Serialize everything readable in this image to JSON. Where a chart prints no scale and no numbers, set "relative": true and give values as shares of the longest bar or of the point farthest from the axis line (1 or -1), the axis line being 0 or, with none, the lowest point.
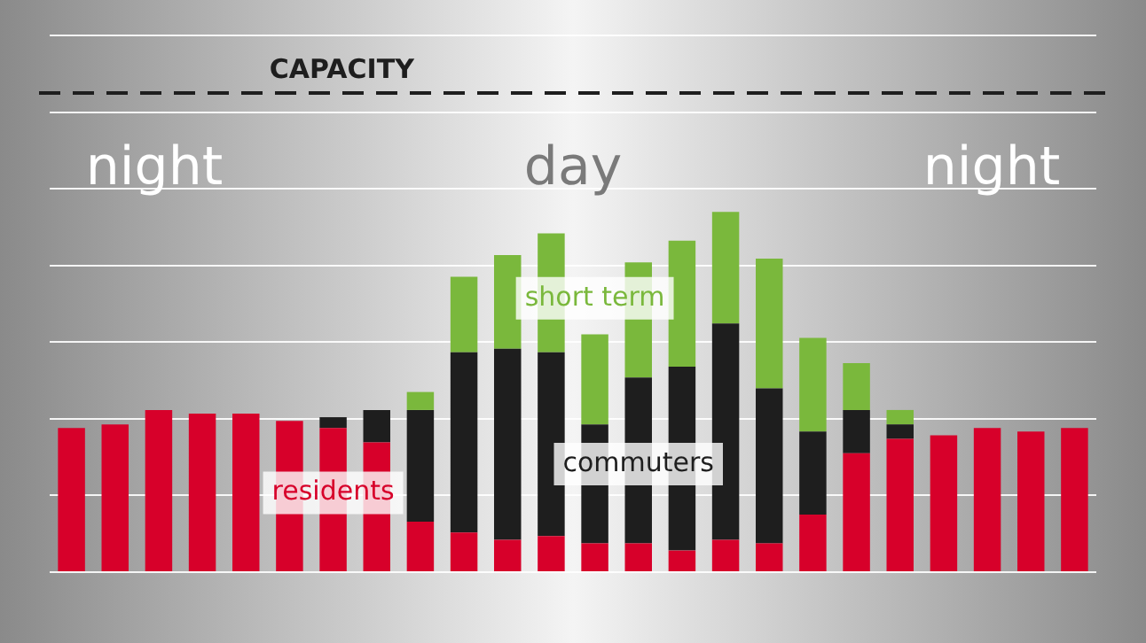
{
  "chart_data": {
    "type": "bar",
    "stacked": true,
    "relative": true,
    "grid": "y",
    "legend": false,
    "categories": [
      null,
      null,
      null,
      null,
      null,
      null,
      null,
      null,
      null,
      null,
      null,
      null,
      null,
      null,
      null,
      null,
      null,
      null,
      null,
      null,
      null,
      null,
      null,
      null
    ],
    "series": [
      {
        "name": "residents",
        "color": "#d7002a",
        "values": [
          0.4,
          0.41,
          0.45,
          0.44,
          0.44,
          0.42,
          0.4,
          0.36,
          0.14,
          0.11,
          0.09,
          0.1,
          0.08,
          0.08,
          0.06,
          0.09,
          0.08,
          0.16,
          0.33,
          0.37,
          0.38,
          0.4,
          0.39,
          0.4
        ]
      },
      {
        "name": "commuters",
        "color": "#1e1e1e",
        "values": [
          null,
          null,
          null,
          null,
          null,
          null,
          0.03,
          0.09,
          0.31,
          0.5,
          0.53,
          0.51,
          0.33,
          0.46,
          0.51,
          0.6,
          0.43,
          0.23,
          0.12,
          0.04,
          null,
          null,
          null,
          null
        ]
      },
      {
        "name": "short term",
        "color": "#7ab83c",
        "values": [
          null,
          null,
          null,
          null,
          null,
          null,
          null,
          null,
          0.05,
          0.21,
          0.26,
          0.33,
          0.25,
          0.32,
          0.35,
          0.31,
          0.36,
          0.26,
          0.13,
          0.04,
          null,
          null,
          null,
          null
        ]
      }
    ],
    "ref_lines": [
      {
        "axis": "y",
        "value": 1.33,
        "label": "CAPACITY",
        "color": "#1e1e1e",
        "line_style": "dashed"
      }
    ],
    "annotations": [
      "night",
      "day",
      "night"
    ]
  }
}
